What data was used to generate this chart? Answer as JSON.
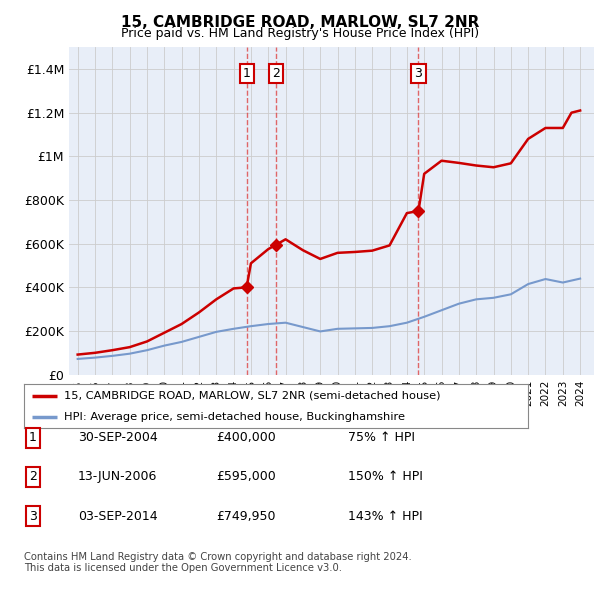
{
  "title": "15, CAMBRIDGE ROAD, MARLOW, SL7 2NR",
  "subtitle": "Price paid vs. HM Land Registry's House Price Index (HPI)",
  "ylim": [
    0,
    1500000
  ],
  "yticks": [
    0,
    200000,
    400000,
    600000,
    800000,
    1000000,
    1200000,
    1400000
  ],
  "ytick_labels": [
    "£0",
    "£200K",
    "£400K",
    "£600K",
    "£800K",
    "£1M",
    "£1.2M",
    "£1.4M"
  ],
  "plot_bg_color": "#e8eef8",
  "fig_bg_color": "#ffffff",
  "red_color": "#cc0000",
  "blue_color": "#7799cc",
  "dashed_color": "#dd4444",
  "transaction_dates": [
    2004.75,
    2006.45,
    2014.67
  ],
  "transaction_labels": [
    "1",
    "2",
    "3"
  ],
  "legend_line1": "15, CAMBRIDGE ROAD, MARLOW, SL7 2NR (semi-detached house)",
  "legend_line2": "HPI: Average price, semi-detached house, Buckinghamshire",
  "table_rows": [
    [
      "1",
      "30-SEP-2004",
      "£400,000",
      "75% ↑ HPI"
    ],
    [
      "2",
      "13-JUN-2006",
      "£595,000",
      "150% ↑ HPI"
    ],
    [
      "3",
      "03-SEP-2014",
      "£749,950",
      "143% ↑ HPI"
    ]
  ],
  "footer": "Contains HM Land Registry data © Crown copyright and database right 2024.\nThis data is licensed under the Open Government Licence v3.0.",
  "hpi_years": [
    1995,
    1996,
    1997,
    1998,
    1999,
    2000,
    2001,
    2002,
    2003,
    2004,
    2005,
    2006,
    2007,
    2008,
    2009,
    2010,
    2011,
    2012,
    2013,
    2014,
    2015,
    2016,
    2017,
    2018,
    2019,
    2020,
    2021,
    2022,
    2023,
    2024
  ],
  "hpi_values": [
    72000,
    78000,
    86000,
    96000,
    112000,
    133000,
    150000,
    173000,
    196000,
    210000,
    222000,
    232000,
    238000,
    218000,
    198000,
    210000,
    212000,
    214000,
    222000,
    238000,
    265000,
    295000,
    325000,
    345000,
    352000,
    368000,
    415000,
    438000,
    422000,
    440000
  ],
  "red_years": [
    1995,
    1996,
    1997,
    1998,
    1999,
    2000,
    2001,
    2002,
    2003,
    2004,
    2004.75,
    2005,
    2006,
    2006.45,
    2007,
    2008,
    2009,
    2010,
    2011,
    2012,
    2013,
    2014,
    2014.67,
    2015,
    2016,
    2017,
    2018,
    2019,
    2020,
    2021,
    2022,
    2023,
    2023.5,
    2024
  ],
  "red_values": [
    92000,
    100000,
    112000,
    126000,
    152000,
    192000,
    232000,
    285000,
    345000,
    395000,
    400000,
    510000,
    575000,
    595000,
    620000,
    570000,
    530000,
    558000,
    562000,
    568000,
    592000,
    740000,
    749950,
    920000,
    980000,
    970000,
    958000,
    950000,
    968000,
    1080000,
    1130000,
    1130000,
    1200000,
    1210000
  ]
}
